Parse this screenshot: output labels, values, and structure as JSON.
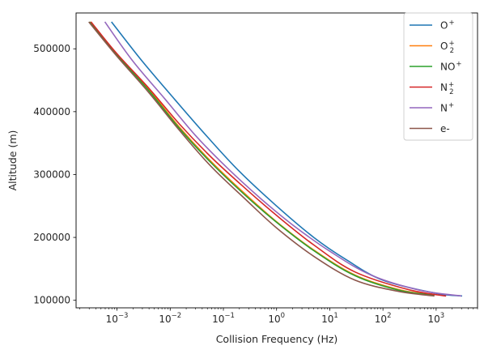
{
  "chart_data": {
    "type": "line",
    "xlabel": "Collision Frequency (Hz)",
    "ylabel": "Altitude (m)",
    "xscale": "log",
    "xlim": [
      0.00017,
      6000
    ],
    "ylim": [
      88000,
      557000
    ],
    "xticks": [
      {
        "value": 0.001,
        "base": "10",
        "exp": "−3"
      },
      {
        "value": 0.01,
        "base": "10",
        "exp": "−2"
      },
      {
        "value": 0.1,
        "base": "10",
        "exp": "−1"
      },
      {
        "value": 1,
        "base": "10",
        "exp": "0"
      },
      {
        "value": 10,
        "base": "10",
        "exp": "1"
      },
      {
        "value": 100,
        "base": "10",
        "exp": "2"
      },
      {
        "value": 1000,
        "base": "10",
        "exp": "3"
      }
    ],
    "yticks": [
      {
        "value": 100000,
        "label": "100000"
      },
      {
        "value": 200000,
        "label": "200000"
      },
      {
        "value": 300000,
        "label": "300000"
      },
      {
        "value": 400000,
        "label": "400000"
      },
      {
        "value": 500000,
        "label": "500000"
      }
    ],
    "legend_position": "top-right",
    "series": [
      {
        "name": "O",
        "sup": "+",
        "sub": "",
        "color": "#1f77b4",
        "x": [
          0.0008,
          0.003,
          0.012,
          0.05,
          0.2,
          1.0,
          5.0,
          20,
          100,
          1000,
          3000
        ],
        "y": [
          542000,
          480000,
          420000,
          360000,
          305000,
          250000,
          200000,
          165000,
          132000,
          111000,
          107000
        ]
      },
      {
        "name": "O",
        "sup": "+",
        "sub": "2",
        "color": "#ff7f0e",
        "x": [
          0.00032,
          0.001,
          0.004,
          0.015,
          0.06,
          0.25,
          1.0,
          5.0,
          30,
          200,
          900
        ],
        "y": [
          542000,
          490000,
          435000,
          375000,
          320000,
          270000,
          225000,
          180000,
          140000,
          117000,
          108000
        ]
      },
      {
        "name": "NO",
        "sup": "+",
        "sub": "",
        "color": "#2ca02c",
        "x": [
          0.00031,
          0.001,
          0.004,
          0.015,
          0.06,
          0.25,
          1.0,
          5.0,
          30,
          200,
          900
        ],
        "y": [
          542000,
          490000,
          433000,
          373000,
          318000,
          268000,
          224000,
          179000,
          139000,
          116000,
          108000
        ]
      },
      {
        "name": "N",
        "sup": "+",
        "sub": "2",
        "color": "#d62728",
        "x": [
          0.00033,
          0.001,
          0.004,
          0.015,
          0.06,
          0.25,
          1.0,
          5.0,
          30,
          300,
          1500
        ],
        "y": [
          542000,
          492000,
          437000,
          380000,
          327000,
          279000,
          235000,
          188000,
          145000,
          117000,
          107000
        ]
      },
      {
        "name": "N",
        "sup": "+",
        "sub": "",
        "color": "#9467bd",
        "x": [
          0.0006,
          0.002,
          0.008,
          0.03,
          0.12,
          0.5,
          2.0,
          10,
          60,
          500,
          2900
        ],
        "y": [
          542000,
          480000,
          420000,
          362000,
          310000,
          262000,
          220000,
          178000,
          140000,
          116000,
          107000
        ]
      },
      {
        "name": "e-",
        "sup": "",
        "sub": "",
        "color": "#8c564b",
        "x": [
          0.0003,
          0.001,
          0.004,
          0.015,
          0.06,
          0.25,
          1.0,
          5.0,
          30,
          200,
          900
        ],
        "y": [
          542000,
          488000,
          430000,
          370000,
          312000,
          262000,
          215000,
          170000,
          132000,
          114000,
          107000
        ]
      }
    ]
  }
}
